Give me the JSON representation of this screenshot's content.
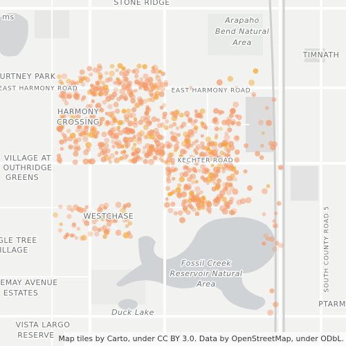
{
  "map": {
    "labels": [
      "STONE RIDGE",
      "Arapaho",
      "Bend Natural",
      "Area",
      "TIMNATH",
      "URTNEY PARK",
      "EAST HARMONY ROAD",
      "EAST HARMONY ROAD",
      "HARMONY",
      "CROSSING",
      "VILLAGE AT",
      "OUTHRIDGE",
      "GREENS",
      "KECHTER ROAD",
      "WESTCHASE",
      "GLE TREE",
      "ILLAGE",
      "Fossil Creek",
      "Reservoir Natural",
      "Area",
      "EMAY AVENUE",
      "ESTATES",
      "SOUTH COUNTY ROAD 5",
      "Duck Lake",
      "VISTA LARGO",
      "RESERVE",
      "PTARM",
      "ms"
    ],
    "attribution": "Map tiles by Carto, under CC BY 3.0. Data by OpenStreetMap, under ODbL."
  }
}
